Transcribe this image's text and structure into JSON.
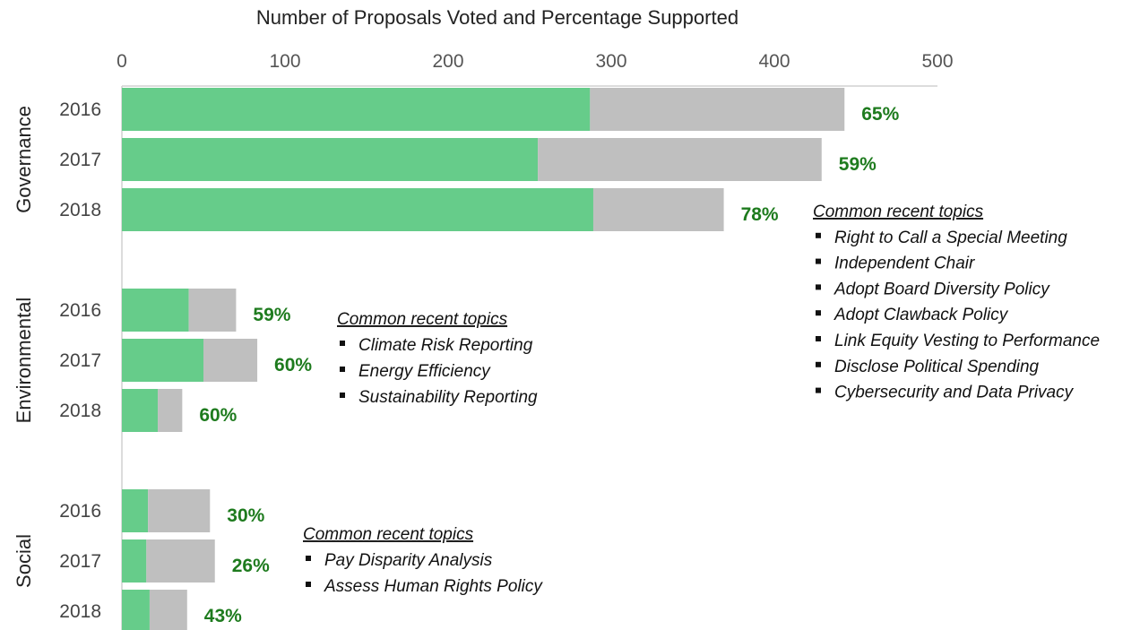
{
  "chart_data": {
    "type": "bar",
    "orientation": "horizontal",
    "stacked": true,
    "title": "Number of Proposals Voted and Percentage Supported",
    "xlim": [
      0,
      500
    ],
    "x_ticks": [
      "0",
      "100",
      "200",
      "300",
      "400",
      "500"
    ],
    "legend": "none",
    "grid": false,
    "colors": {
      "supported": "#66cc8a",
      "remainder": "#bfbfbf",
      "percent_label": "#1e7b1e"
    },
    "groups": [
      {
        "name": "Governance",
        "bars": [
          {
            "year": "2016",
            "total": 443,
            "supported": 287,
            "pct_label": "65%"
          },
          {
            "year": "2017",
            "total": 429,
            "supported": 255,
            "pct_label": "59%"
          },
          {
            "year": "2018",
            "total": 369,
            "supported": 289,
            "pct_label": "78%"
          }
        ],
        "annotation": {
          "title": "Common recent topics",
          "items": [
            "Right to Call a Special Meeting",
            "Independent Chair",
            "Adopt Board Diversity Policy",
            "Adopt Clawback Policy",
            "Link Equity Vesting to Performance",
            "Disclose Political Spending",
            "Cybersecurity and Data Privacy"
          ]
        }
      },
      {
        "name": "Environmental",
        "bars": [
          {
            "year": "2016",
            "total": 70,
            "supported": 41,
            "pct_label": "59%"
          },
          {
            "year": "2017",
            "total": 83,
            "supported": 50,
            "pct_label": "60%"
          },
          {
            "year": "2018",
            "total": 37,
            "supported": 22,
            "pct_label": "60%"
          }
        ],
        "annotation": {
          "title": "Common recent topics",
          "items": [
            "Climate Risk Reporting",
            "Energy Efficiency",
            "Sustainability Reporting"
          ]
        }
      },
      {
        "name": "Social",
        "bars": [
          {
            "year": "2016",
            "total": 54,
            "supported": 16,
            "pct_label": "30%"
          },
          {
            "year": "2017",
            "total": 57,
            "supported": 15,
            "pct_label": "26%"
          },
          {
            "year": "2018",
            "total": 40,
            "supported": 17,
            "pct_label": "43%"
          }
        ],
        "annotation": {
          "title": "Common recent topics",
          "items": [
            "Pay Disparity Analysis",
            "Assess Human Rights Policy"
          ]
        }
      }
    ]
  }
}
